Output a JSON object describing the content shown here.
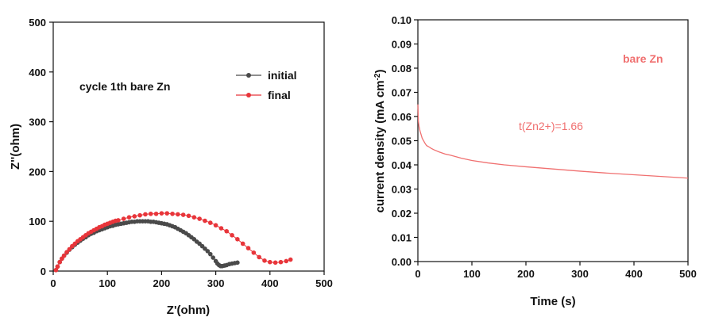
{
  "colors": {
    "dark": "#4a4a4a",
    "red": "#e8353a",
    "curve": "#f07070"
  },
  "chart_data": [
    {
      "type": "scatter",
      "xlabel": "Z'(ohm)",
      "ylabel": "Z''(ohm)",
      "xlim": [
        0,
        500
      ],
      "ylim": [
        0,
        500
      ],
      "xticks": [
        "0",
        "100",
        "200",
        "300",
        "400",
        "500"
      ],
      "yticks": [
        "0",
        "100",
        "200",
        "300",
        "400",
        "500"
      ],
      "annotation": "cycle 1th bare Zn",
      "legend": [
        "initial",
        "final"
      ],
      "series": [
        {
          "name": "initial",
          "x": [
            5,
            8,
            12,
            16,
            20,
            25,
            30,
            35,
            40,
            45,
            50,
            55,
            60,
            65,
            70,
            75,
            80,
            85,
            90,
            95,
            100,
            105,
            110,
            115,
            120,
            125,
            130,
            135,
            140,
            145,
            150,
            155,
            160,
            165,
            170,
            175,
            180,
            185,
            190,
            195,
            200,
            205,
            210,
            215,
            220,
            225,
            230,
            235,
            240,
            245,
            250,
            255,
            260,
            265,
            270,
            275,
            280,
            285,
            290,
            295,
            300,
            303,
            306,
            309,
            312,
            316,
            320,
            325,
            330,
            335,
            340
          ],
          "y": [
            2,
            9,
            18,
            25,
            31,
            37,
            43,
            48,
            53,
            57,
            61,
            65,
            68,
            72,
            75,
            77,
            80,
            82,
            84,
            86,
            88,
            90,
            91,
            93,
            94,
            95,
            96,
            97,
            98,
            99,
            99,
            100,
            100,
            100,
            100,
            100,
            99,
            99,
            98,
            97,
            96,
            95,
            94,
            92,
            90,
            88,
            85,
            82,
            79,
            76,
            72,
            68,
            64,
            59,
            55,
            50,
            45,
            40,
            34,
            27,
            20,
            15,
            12,
            10,
            10,
            11,
            12,
            14,
            15,
            16,
            17
          ]
        },
        {
          "name": "final",
          "x": [
            5,
            8,
            12,
            16,
            20,
            25,
            30,
            35,
            40,
            45,
            50,
            55,
            60,
            65,
            70,
            75,
            80,
            85,
            90,
            95,
            100,
            105,
            110,
            115,
            120,
            130,
            140,
            150,
            160,
            170,
            180,
            190,
            200,
            210,
            220,
            230,
            240,
            250,
            260,
            270,
            280,
            290,
            300,
            310,
            320,
            330,
            340,
            350,
            360,
            370,
            380,
            390,
            400,
            410,
            420,
            430,
            438
          ],
          "y": [
            2,
            9,
            18,
            25,
            31,
            38,
            44,
            50,
            55,
            60,
            64,
            68,
            72,
            76,
            79,
            82,
            85,
            88,
            90,
            93,
            95,
            97,
            99,
            101,
            102,
            105,
            108,
            110,
            112,
            114,
            115,
            115,
            116,
            116,
            115,
            114,
            113,
            111,
            108,
            105,
            101,
            97,
            92,
            86,
            80,
            72,
            64,
            55,
            46,
            37,
            28,
            21,
            18,
            17,
            18,
            20,
            23
          ]
        }
      ]
    },
    {
      "type": "line",
      "xlabel": "Time (s)",
      "ylabel": "current density (mA cm",
      "ylabel_sup": "-2",
      "ylabel_close": ")",
      "xlim": [
        0,
        500
      ],
      "ylim": [
        0,
        0.1
      ],
      "xticks": [
        "0",
        "100",
        "200",
        "300",
        "400",
        "500"
      ],
      "yticks": [
        "0.00",
        "0.01",
        "0.02",
        "0.03",
        "0.04",
        "0.05",
        "0.06",
        "0.07",
        "0.08",
        "0.09",
        "0.10"
      ],
      "annotations": [
        "bare Zn",
        "t(Zn2+)=1.66"
      ],
      "series": [
        {
          "name": "bare Zn",
          "x": [
            0,
            1,
            2,
            4,
            6,
            8,
            10,
            13,
            16,
            20,
            25,
            30,
            40,
            50,
            60,
            80,
            100,
            130,
            160,
            200,
            250,
            300,
            350,
            400,
            450,
            500
          ],
          "y": [
            0.065,
            0.058,
            0.056,
            0.054,
            0.0525,
            0.051,
            0.0502,
            0.049,
            0.048,
            0.0475,
            0.0468,
            0.0462,
            0.0453,
            0.0445,
            0.044,
            0.0428,
            0.0418,
            0.0408,
            0.04,
            0.0392,
            0.0383,
            0.0374,
            0.0366,
            0.0359,
            0.0352,
            0.0345
          ]
        }
      ]
    }
  ]
}
